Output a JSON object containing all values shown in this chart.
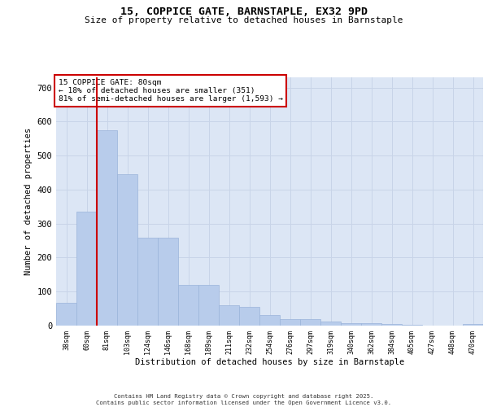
{
  "title_line1": "15, COPPICE GATE, BARNSTAPLE, EX32 9PD",
  "title_line2": "Size of property relative to detached houses in Barnstaple",
  "xlabel": "Distribution of detached houses by size in Barnstaple",
  "ylabel": "Number of detached properties",
  "categories": [
    "38sqm",
    "60sqm",
    "81sqm",
    "103sqm",
    "124sqm",
    "146sqm",
    "168sqm",
    "189sqm",
    "211sqm",
    "232sqm",
    "254sqm",
    "276sqm",
    "297sqm",
    "319sqm",
    "340sqm",
    "362sqm",
    "384sqm",
    "405sqm",
    "427sqm",
    "448sqm",
    "470sqm"
  ],
  "values": [
    68,
    335,
    575,
    445,
    258,
    258,
    120,
    120,
    60,
    55,
    30,
    20,
    18,
    13,
    8,
    6,
    4,
    3,
    1,
    0,
    4
  ],
  "bar_color": "#b8cceb",
  "bar_edge_color": "#9ab4da",
  "grid_color": "#c8d4e8",
  "background_color": "#dce6f5",
  "vline_color": "#cc0000",
  "annotation_text": "15 COPPICE GATE: 80sqm\n← 18% of detached houses are smaller (351)\n81% of semi-detached houses are larger (1,593) →",
  "annotation_box_color": "#ffffff",
  "annotation_box_edge": "#cc0000",
  "footer_text": "Contains HM Land Registry data © Crown copyright and database right 2025.\nContains public sector information licensed under the Open Government Licence v3.0.",
  "ylim": [
    0,
    730
  ],
  "yticks": [
    0,
    100,
    200,
    300,
    400,
    500,
    600,
    700
  ]
}
